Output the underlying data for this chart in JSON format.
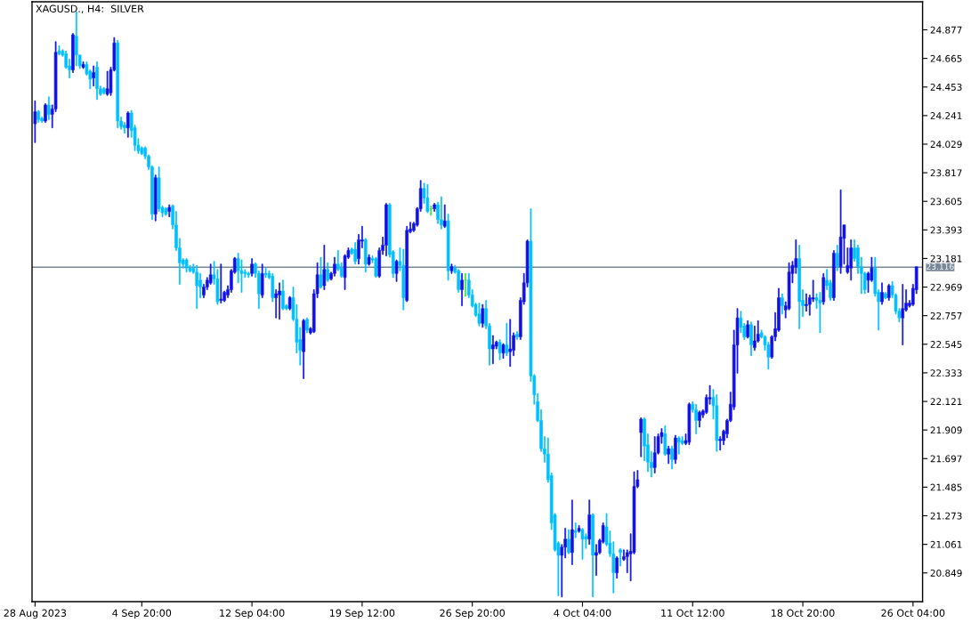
{
  "chart_data": {
    "type": "candlestick",
    "title": "XAGUSD., H4:  SILVER",
    "categories": [
      "28 Aug 2023",
      null,
      null,
      null,
      null,
      null,
      null,
      null,
      null,
      null,
      null,
      null,
      null,
      null,
      null,
      null,
      null,
      null,
      null,
      null,
      null,
      null,
      null,
      null,
      null,
      null,
      null,
      null,
      null,
      null,
      null,
      "4 Sep 20:00",
      null,
      null,
      null,
      null,
      null,
      null,
      null,
      null,
      null,
      null,
      null,
      null,
      null,
      null,
      null,
      null,
      null,
      null,
      null,
      null,
      null,
      null,
      null,
      null,
      null,
      null,
      null,
      null,
      null,
      null,
      null,
      "12 Sep 04:00",
      null,
      null,
      null,
      null,
      null,
      null,
      null,
      null,
      null,
      null,
      null,
      null,
      null,
      null,
      null,
      null,
      null,
      null,
      null,
      null,
      null,
      null,
      null,
      null,
      null,
      null,
      null,
      null,
      null,
      null,
      null,
      "19 Sep 12:00",
      null,
      null,
      null,
      null,
      null,
      null,
      null,
      null,
      null,
      null,
      null,
      null,
      null,
      null,
      null,
      null,
      null,
      null,
      null,
      null,
      null,
      null,
      null,
      null,
      null,
      null,
      null,
      null,
      null,
      null,
      null,
      "26 Sep 20:00",
      null,
      null,
      null,
      null,
      null,
      null,
      null,
      null,
      null,
      null,
      null,
      null,
      null,
      null,
      null,
      null,
      null,
      null,
      null,
      null,
      null,
      null,
      null,
      null,
      null,
      null,
      null,
      null,
      null,
      null,
      null,
      "4 Oct 04:00",
      null,
      null,
      null,
      null,
      null,
      null,
      null,
      null,
      null,
      null,
      null,
      null,
      null,
      null,
      null,
      null,
      null,
      null,
      null,
      null,
      null,
      null,
      null,
      null,
      null,
      null,
      null,
      null,
      null,
      null,
      null,
      "11 Oct 12:00",
      null,
      null,
      null,
      null,
      null,
      null,
      null,
      null,
      null,
      null,
      null,
      null,
      null,
      null,
      null,
      null,
      null,
      null,
      null,
      null,
      null,
      null,
      null,
      null,
      null,
      null,
      null,
      null,
      null,
      null,
      null,
      "18 Oct 20:00",
      null,
      null,
      null,
      null,
      null,
      null,
      null,
      null,
      null,
      null,
      null,
      null,
      null,
      null,
      null,
      null,
      null,
      null,
      null,
      null,
      null,
      null,
      null,
      null,
      null,
      null,
      null,
      null,
      null,
      null,
      null,
      "26 Oct 04:00",
      null
    ],
    "ohlc": [
      [
        24.18,
        24.35,
        24.04,
        24.27
      ],
      [
        24.27,
        24.28,
        24.19,
        24.21
      ],
      [
        24.22,
        24.23,
        24.19,
        24.2
      ],
      [
        24.2,
        24.33,
        24.19,
        24.32
      ],
      [
        24.32,
        24.38,
        24.21,
        24.25
      ],
      [
        24.25,
        24.32,
        24.15,
        24.29
      ],
      [
        24.29,
        24.79,
        24.27,
        24.71
      ],
      [
        24.72,
        24.76,
        24.69,
        24.7
      ],
      [
        24.72,
        24.73,
        24.68,
        24.69
      ],
      [
        24.7,
        24.72,
        24.59,
        24.6
      ],
      [
        24.61,
        24.66,
        24.52,
        24.58
      ],
      [
        24.58,
        24.85,
        24.56,
        24.84
      ],
      [
        24.83,
        25.01,
        24.61,
        24.69
      ],
      [
        24.69,
        24.69,
        24.59,
        24.61
      ],
      [
        24.6,
        24.64,
        24.59,
        24.62
      ],
      [
        24.62,
        24.64,
        24.54,
        24.55
      ],
      [
        24.57,
        24.58,
        24.44,
        24.51
      ],
      [
        24.52,
        24.61,
        24.46,
        24.56
      ],
      [
        24.6,
        24.64,
        24.36,
        24.44
      ],
      [
        24.44,
        24.46,
        24.39,
        24.4
      ],
      [
        24.44,
        24.45,
        24.4,
        24.41
      ],
      [
        24.4,
        24.57,
        24.39,
        24.44
      ],
      [
        24.41,
        24.6,
        24.39,
        24.58
      ],
      [
        24.58,
        24.82,
        24.57,
        24.78
      ],
      [
        24.78,
        24.8,
        24.15,
        24.2
      ],
      [
        24.2,
        24.23,
        24.14,
        24.16
      ],
      [
        24.17,
        24.19,
        24.11,
        24.15
      ],
      [
        24.15,
        24.27,
        24.08,
        24.26
      ],
      [
        24.26,
        24.28,
        24.08,
        24.13
      ],
      [
        24.15,
        24.17,
        23.98,
        24.02
      ],
      [
        24.02,
        24.07,
        23.96,
        23.98
      ],
      [
        24.0,
        24.01,
        23.95,
        23.96
      ],
      [
        24.0,
        24.01,
        23.92,
        23.94
      ],
      [
        23.94,
        23.95,
        23.84,
        23.86
      ],
      [
        23.86,
        23.87,
        23.47,
        23.51
      ],
      [
        23.51,
        23.8,
        23.46,
        23.78
      ],
      [
        23.78,
        23.86,
        23.53,
        23.55
      ],
      [
        23.56,
        23.57,
        23.49,
        23.52
      ],
      [
        23.55,
        23.56,
        23.5,
        23.51
      ],
      [
        23.53,
        23.58,
        23.49,
        23.56
      ],
      [
        23.57,
        23.58,
        23.4,
        23.43
      ],
      [
        23.43,
        23.53,
        23.24,
        23.26
      ],
      [
        23.26,
        23.33,
        22.99,
        23.15
      ],
      [
        23.17,
        23.18,
        23.11,
        23.14
      ],
      [
        23.17,
        23.18,
        23.08,
        23.11
      ],
      [
        23.11,
        23.13,
        23.08,
        23.09
      ],
      [
        23.11,
        23.14,
        23.07,
        23.08
      ],
      [
        23.08,
        23.13,
        22.81,
        22.98
      ],
      [
        23.02,
        23.07,
        22.89,
        22.97
      ],
      [
        22.91,
        22.99,
        22.89,
        22.97
      ],
      [
        22.97,
        23.04,
        22.95,
        23.02
      ],
      [
        23.0,
        23.14,
        22.99,
        23.06
      ],
      [
        23.06,
        23.16,
        22.99,
        23.03
      ],
      [
        23.03,
        23.1,
        22.84,
        22.86
      ],
      [
        22.87,
        23.14,
        22.85,
        22.88
      ],
      [
        22.87,
        22.94,
        22.86,
        22.93
      ],
      [
        22.91,
        22.98,
        22.89,
        22.95
      ],
      [
        22.95,
        23.1,
        22.93,
        23.09
      ],
      [
        23.08,
        23.19,
        23.07,
        23.18
      ],
      [
        23.18,
        23.22,
        23.0,
        23.09
      ],
      [
        23.09,
        23.17,
        22.93,
        23.07
      ],
      [
        23.08,
        23.1,
        23.04,
        23.07
      ],
      [
        23.07,
        23.08,
        23.04,
        23.06
      ],
      [
        23.07,
        23.18,
        23.05,
        23.14
      ],
      [
        23.14,
        23.15,
        23.04,
        23.07
      ],
      [
        23.07,
        23.09,
        22.81,
        22.92
      ],
      [
        22.91,
        23.14,
        22.89,
        23.07
      ],
      [
        23.07,
        23.11,
        23.04,
        23.06
      ],
      [
        23.07,
        23.09,
        23.03,
        23.04
      ],
      [
        23.05,
        23.07,
        22.86,
        22.89
      ],
      [
        22.89,
        22.95,
        22.74,
        22.92
      ],
      [
        22.91,
        23.0,
        22.73,
        22.94
      ],
      [
        22.94,
        23.02,
        22.8,
        22.81
      ],
      [
        22.83,
        22.84,
        22.8,
        22.81
      ],
      [
        22.81,
        22.9,
        22.8,
        22.89
      ],
      [
        22.89,
        22.97,
        22.72,
        22.73
      ],
      [
        22.73,
        22.84,
        22.48,
        22.56
      ],
      [
        22.58,
        22.67,
        22.39,
        22.5
      ],
      [
        22.49,
        22.73,
        22.29,
        22.72
      ],
      [
        22.73,
        22.74,
        22.63,
        22.65
      ],
      [
        22.63,
        22.67,
        22.62,
        22.66
      ],
      [
        22.64,
        22.95,
        22.63,
        22.92
      ],
      [
        22.92,
        23.15,
        22.89,
        23.06
      ],
      [
        23.06,
        23.19,
        22.96,
        22.97
      ],
      [
        22.98,
        23.28,
        22.95,
        23.1
      ],
      [
        23.1,
        23.15,
        23.01,
        23.02
      ],
      [
        23.03,
        23.08,
        23.02,
        23.07
      ],
      [
        23.07,
        23.19,
        23.05,
        23.14
      ],
      [
        23.14,
        23.24,
        23.09,
        23.1
      ],
      [
        23.11,
        23.15,
        23.04,
        23.05
      ],
      [
        23.04,
        23.21,
        22.95,
        23.2
      ],
      [
        23.19,
        23.26,
        23.18,
        23.24
      ],
      [
        23.25,
        23.26,
        23.21,
        23.22
      ],
      [
        23.25,
        23.3,
        23.14,
        23.16
      ],
      [
        23.18,
        23.36,
        23.14,
        23.32
      ],
      [
        23.31,
        23.42,
        23.26,
        23.32
      ],
      [
        23.32,
        23.33,
        23.08,
        23.14
      ],
      [
        23.14,
        23.21,
        23.13,
        23.19
      ],
      [
        23.18,
        23.2,
        23.15,
        23.17
      ],
      [
        23.18,
        23.19,
        23.04,
        23.05
      ],
      [
        23.05,
        23.26,
        23.04,
        23.24
      ],
      [
        23.24,
        23.34,
        23.21,
        23.28
      ],
      [
        23.28,
        23.59,
        23.2,
        23.58
      ],
      [
        23.58,
        23.59,
        23.19,
        23.21
      ],
      [
        23.23,
        23.24,
        23.04,
        23.07
      ],
      [
        23.07,
        23.17,
        23.01,
        23.16
      ],
      [
        23.16,
        23.26,
        23.09,
        23.13
      ],
      [
        23.13,
        23.25,
        22.8,
        22.89
      ],
      [
        22.87,
        23.42,
        22.86,
        23.39
      ],
      [
        23.38,
        23.45,
        23.37,
        23.4
      ],
      [
        23.39,
        23.45,
        23.38,
        23.44
      ],
      [
        23.43,
        23.56,
        23.42,
        23.55
      ],
      [
        23.55,
        23.76,
        23.53,
        23.7
      ],
      [
        23.7,
        23.74,
        23.59,
        23.63
      ],
      [
        23.63,
        23.73,
        23.52,
        23.53
      ],
      [
        23.55,
        23.57,
        23.5,
        23.55
      ],
      [
        23.55,
        23.59,
        23.53,
        23.58
      ],
      [
        23.58,
        23.6,
        23.44,
        23.47
      ],
      [
        23.47,
        23.64,
        23.4,
        23.43
      ],
      [
        23.42,
        23.58,
        23.41,
        23.46
      ],
      [
        23.46,
        23.51,
        23.02,
        23.09
      ],
      [
        23.09,
        23.14,
        23.07,
        23.12
      ],
      [
        23.11,
        23.13,
        23.07,
        23.08
      ],
      [
        23.09,
        23.1,
        22.93,
        22.95
      ],
      [
        22.95,
        23.07,
        22.83,
        23.02
      ],
      [
        23.02,
        23.07,
        22.9,
        23.02
      ],
      [
        23.02,
        23.07,
        22.89,
        22.91
      ],
      [
        22.91,
        22.95,
        22.82,
        22.83
      ],
      [
        22.84,
        22.85,
        22.75,
        22.76
      ],
      [
        22.77,
        22.85,
        22.68,
        22.7
      ],
      [
        22.7,
        22.84,
        22.67,
        22.81
      ],
      [
        22.81,
        22.87,
        22.66,
        22.68
      ],
      [
        22.68,
        22.7,
        22.39,
        22.51
      ],
      [
        22.51,
        22.61,
        22.4,
        22.54
      ],
      [
        22.53,
        22.57,
        22.51,
        22.56
      ],
      [
        22.56,
        22.58,
        22.43,
        22.48
      ],
      [
        22.48,
        22.55,
        22.44,
        22.54
      ],
      [
        22.54,
        22.7,
        22.46,
        22.48
      ],
      [
        22.49,
        22.73,
        22.38,
        22.51
      ],
      [
        22.5,
        22.63,
        22.46,
        22.61
      ],
      [
        22.62,
        22.64,
        22.58,
        22.6
      ],
      [
        22.6,
        22.89,
        22.58,
        22.87
      ],
      [
        22.86,
        23.07,
        22.84,
        23.0
      ],
      [
        23.0,
        23.32,
        22.97,
        23.31
      ],
      [
        23.31,
        23.55,
        22.27,
        22.31
      ],
      [
        22.31,
        22.32,
        22.1,
        22.17
      ],
      [
        22.12,
        22.18,
        21.97,
        21.98
      ],
      [
        21.98,
        22.06,
        21.75,
        21.77
      ],
      [
        21.77,
        21.86,
        21.67,
        21.73
      ],
      [
        21.73,
        21.85,
        21.52,
        21.54
      ],
      [
        21.57,
        21.59,
        21.17,
        21.22
      ],
      [
        21.28,
        21.29,
        21.01,
        21.02
      ],
      [
        21.07,
        21.08,
        20.68,
        20.98
      ],
      [
        20.98,
        21.06,
        20.67,
        21.04
      ],
      [
        21.04,
        21.18,
        20.96,
        21.1
      ],
      [
        21.1,
        21.17,
        20.99,
        21.0
      ],
      [
        21.0,
        21.39,
        20.91,
        21.17
      ],
      [
        21.16,
        21.22,
        21.11,
        21.15
      ],
      [
        21.16,
        21.2,
        21.15,
        21.18
      ],
      [
        21.17,
        21.18,
        20.95,
        21.1
      ],
      [
        21.12,
        21.14,
        21.03,
        21.1
      ],
      [
        21.1,
        21.39,
        21.06,
        21.28
      ],
      [
        21.28,
        21.29,
        20.67,
        20.98
      ],
      [
        20.98,
        21.06,
        20.83,
        21.0
      ],
      [
        21.0,
        21.1,
        20.99,
        21.09
      ],
      [
        21.08,
        21.22,
        21.07,
        21.2
      ],
      [
        21.19,
        21.29,
        21.05,
        21.06
      ],
      [
        21.07,
        21.16,
        20.97,
        20.99
      ],
      [
        20.99,
        21.08,
        20.7,
        20.85
      ],
      [
        20.85,
        20.97,
        20.81,
        20.96
      ],
      [
        21.02,
        21.03,
        20.9,
        21.0
      ],
      [
        20.95,
        21.02,
        20.94,
        20.97
      ],
      [
        20.97,
        21.02,
        20.85,
        21.0
      ],
      [
        20.99,
        21.14,
        20.79,
        21.01
      ],
      [
        21.0,
        21.6,
        20.99,
        21.49
      ],
      [
        21.49,
        21.61,
        21.48,
        21.54
      ],
      [
        21.89,
        22.0,
        21.71,
        21.99
      ],
      [
        21.99,
        22.0,
        21.68,
        21.79
      ],
      [
        21.8,
        21.88,
        21.6,
        21.67
      ],
      [
        21.67,
        21.75,
        21.56,
        21.63
      ],
      [
        21.63,
        21.86,
        21.59,
        21.74
      ],
      [
        21.74,
        21.88,
        21.73,
        21.86
      ],
      [
        21.86,
        21.92,
        21.81,
        21.89
      ],
      [
        21.88,
        21.94,
        21.72,
        21.73
      ],
      [
        21.73,
        21.79,
        21.66,
        21.77
      ],
      [
        21.77,
        21.79,
        21.62,
        21.69
      ],
      [
        21.69,
        21.87,
        21.66,
        21.85
      ],
      [
        21.85,
        21.86,
        21.73,
        21.82
      ],
      [
        21.83,
        21.86,
        21.8,
        21.81
      ],
      [
        21.81,
        21.88,
        21.8,
        21.83
      ],
      [
        21.82,
        22.11,
        21.8,
        22.1
      ],
      [
        22.1,
        22.12,
        22.04,
        22.06
      ],
      [
        22.06,
        22.1,
        21.88,
        21.98
      ],
      [
        21.98,
        22.05,
        21.93,
        22.04
      ],
      [
        22.02,
        22.06,
        22.0,
        22.05
      ],
      [
        22.04,
        22.17,
        22.03,
        22.15
      ],
      [
        22.14,
        22.24,
        22.1,
        22.15
      ],
      [
        22.15,
        22.21,
        21.99,
        22.09
      ],
      [
        22.09,
        22.17,
        21.75,
        21.83
      ],
      [
        21.83,
        21.86,
        21.76,
        21.84
      ],
      [
        21.83,
        21.91,
        21.8,
        21.9
      ],
      [
        21.88,
        21.99,
        21.85,
        21.98
      ],
      [
        21.98,
        22.19,
        21.97,
        22.1
      ],
      [
        22.08,
        22.65,
        22.06,
        22.54
      ],
      [
        22.54,
        22.81,
        22.33,
        22.74
      ],
      [
        22.74,
        22.79,
        22.63,
        22.67
      ],
      [
        22.68,
        22.7,
        22.58,
        22.6
      ],
      [
        22.6,
        22.72,
        22.59,
        22.69
      ],
      [
        22.69,
        22.71,
        22.46,
        22.54
      ],
      [
        22.52,
        22.68,
        22.5,
        22.57
      ],
      [
        22.57,
        22.72,
        22.56,
        22.62
      ],
      [
        22.63,
        22.65,
        22.59,
        22.6
      ],
      [
        22.6,
        22.61,
        22.5,
        22.54
      ],
      [
        22.54,
        22.56,
        22.36,
        22.45
      ],
      [
        22.45,
        22.61,
        22.44,
        22.6
      ],
      [
        22.6,
        22.78,
        22.57,
        22.66
      ],
      [
        22.65,
        22.96,
        22.64,
        22.89
      ],
      [
        22.89,
        22.92,
        22.77,
        22.83
      ],
      [
        22.8,
        22.86,
        22.74,
        22.83
      ],
      [
        22.81,
        23.15,
        22.8,
        23.08
      ],
      [
        23.07,
        23.16,
        23.0,
        23.13
      ],
      [
        23.12,
        23.32,
        23.07,
        23.18
      ],
      [
        23.18,
        23.28,
        22.66,
        22.86
      ],
      [
        22.87,
        22.95,
        22.75,
        22.83
      ],
      [
        22.83,
        22.92,
        22.79,
        22.84
      ],
      [
        22.84,
        22.91,
        22.76,
        22.89
      ],
      [
        22.88,
        23.02,
        22.86,
        22.89
      ],
      [
        22.89,
        22.92,
        22.81,
        22.87
      ],
      [
        22.87,
        22.93,
        22.63,
        22.85
      ],
      [
        22.86,
        23.07,
        22.84,
        23.04
      ],
      [
        23.02,
        23.1,
        22.95,
        22.98
      ],
      [
        23.0,
        23.02,
        22.87,
        22.89
      ],
      [
        22.89,
        23.24,
        22.87,
        23.22
      ],
      [
        23.22,
        23.28,
        23.09,
        23.12
      ],
      [
        23.12,
        23.69,
        23.07,
        23.34
      ],
      [
        23.33,
        23.43,
        23.14,
        23.43
      ],
      [
        23.08,
        23.26,
        23.07,
        23.13
      ],
      [
        23.11,
        23.32,
        23.02,
        23.26
      ],
      [
        23.26,
        23.32,
        23.16,
        23.18
      ],
      [
        23.26,
        23.28,
        23.07,
        23.12
      ],
      [
        23.12,
        23.19,
        22.92,
        23.07
      ],
      [
        23.07,
        23.08,
        22.92,
        22.95
      ],
      [
        23.02,
        23.08,
        22.93,
        23.07
      ],
      [
        23.02,
        23.19,
        23.01,
        23.11
      ],
      [
        23.11,
        23.19,
        22.9,
        22.92
      ],
      [
        22.93,
        22.95,
        22.65,
        22.86
      ],
      [
        22.86,
        23.0,
        22.84,
        22.93
      ],
      [
        22.92,
        22.93,
        22.88,
        22.89
      ],
      [
        22.89,
        22.99,
        22.87,
        22.98
      ],
      [
        22.98,
        23.01,
        22.89,
        22.91
      ],
      [
        22.91,
        22.92,
        22.77,
        22.79
      ],
      [
        22.79,
        22.81,
        22.71,
        22.74
      ],
      [
        22.74,
        22.99,
        22.54,
        22.81
      ],
      [
        22.8,
        22.95,
        22.79,
        22.85
      ],
      [
        22.83,
        22.87,
        22.82,
        22.85
      ],
      [
        22.84,
        22.99,
        22.83,
        22.96
      ],
      [
        22.95,
        23.12,
        22.92,
        23.12
      ]
    ],
    "colors": [
      "#1010e6",
      "#00bfff",
      "#00bfff",
      "#1010e6",
      "#00bfff",
      "#1010e6",
      "#1010e6",
      "#00bfff",
      "#00bfff",
      "#00bfff",
      "#00bfff",
      "#1010e6",
      "#00bfff",
      "#00bfff",
      "#1010e6",
      "#00bfff",
      "#00bfff",
      "#1010e6",
      "#00bfff",
      "#00bfff",
      "#00bfff",
      "#1010e6",
      "#1010e6",
      "#1010e6",
      "#00bfff",
      "#00bfff",
      "#00bfff",
      "#1010e6",
      "#00bfff",
      "#00bfff",
      "#00bfff",
      "#00bfff",
      "#00bfff",
      "#00bfff",
      "#00bfff",
      "#1010e6",
      "#00bfff",
      "#00bfff",
      "#00bfff",
      "#1010e6",
      "#00bfff",
      "#00bfff",
      "#00bfff",
      "#00bfff",
      "#00bfff",
      "#00bfff",
      "#00bfff",
      "#00bfff",
      "#00bfff",
      "#1010e6",
      "#1010e6",
      "#1010e6",
      "#00bfff",
      "#00bfff",
      "#1010e6",
      "#1010e6",
      "#1010e6",
      "#1010e6",
      "#1010e6",
      "#00bfff",
      "#00bfff",
      "#00bfff",
      "#00bfff",
      "#1010e6",
      "#00bfff",
      "#00bfff",
      "#1010e6",
      "#00bfff",
      "#00bfff",
      "#00bfff",
      "#1010e6",
      "#1010e6",
      "#00bfff",
      "#00bfff",
      "#1010e6",
      "#00bfff",
      "#00bfff",
      "#00bfff",
      "#1010e6",
      "#00bfff",
      "#1010e6",
      "#1010e6",
      "#1010e6",
      "#00bfff",
      "#1010e6",
      "#00bfff",
      "#1010e6",
      "#1010e6",
      "#00bfff",
      "#00bfff",
      "#1010e6",
      "#1010e6",
      "#00bfff",
      "#00bfff",
      "#1010e6",
      "#1010e6",
      "#00bfff",
      "#1010e6",
      "#00bfff",
      "#00bfff",
      "#1010e6",
      "#1010e6",
      "#1010e6",
      "#00bfff",
      "#00bfff",
      "#1010e6",
      "#00bfff",
      "#00bfff",
      "#1010e6",
      "#1010e6",
      "#1010e6",
      "#1010e6",
      "#1010e6",
      "#00bfff",
      "#00bfff",
      "#32e632",
      "#1010e6",
      "#00bfff",
      "#00bfff",
      "#1010e6",
      "#00bfff",
      "#1010e6",
      "#00bfff",
      "#00bfff",
      "#1010e6",
      "#32e632",
      "#00bfff",
      "#00bfff",
      "#00bfff",
      "#00bfff",
      "#1010e6",
      "#00bfff",
      "#00bfff",
      "#1010e6",
      "#1010e6",
      "#00bfff",
      "#1010e6",
      "#00bfff",
      "#1010e6",
      "#1010e6",
      "#00bfff",
      "#1010e6",
      "#1010e6",
      "#1010e6",
      "#00bfff",
      "#00bfff",
      "#00bfff",
      "#00bfff",
      "#00bfff",
      "#00bfff",
      "#00bfff",
      "#00bfff",
      "#00bfff",
      "#1010e6",
      "#1010e6",
      "#00bfff",
      "#1010e6",
      "#00bfff",
      "#1010e6",
      "#00bfff",
      "#00bfff",
      "#1010e6",
      "#00bfff",
      "#1010e6",
      "#1010e6",
      "#1010e6",
      "#00bfff",
      "#00bfff",
      "#00bfff",
      "#1010e6",
      "#00bfff",
      "#1010e6",
      "#1010e6",
      "#1010e6",
      "#1010e6",
      "#1010e6",
      "#1010e6",
      "#00bfff",
      "#00bfff",
      "#00bfff",
      "#1010e6",
      "#1010e6",
      "#1010e6",
      "#00bfff",
      "#1010e6",
      "#00bfff",
      "#1010e6",
      "#00bfff",
      "#00bfff",
      "#1010e6",
      "#1010e6",
      "#00bfff",
      "#00bfff",
      "#1010e6",
      "#1010e6",
      "#1010e6",
      "#1010e6",
      "#00bfff",
      "#00bfff",
      "#1010e6",
      "#1010e6",
      "#1010e6",
      "#1010e6",
      "#1010e6",
      "#1010e6",
      "#00bfff",
      "#00bfff",
      "#1010e6",
      "#00bfff",
      "#1010e6",
      "#1010e6",
      "#00bfff",
      "#00bfff",
      "#00bfff",
      "#1010e6",
      "#1010e6",
      "#1010e6",
      "#00bfff",
      "#1010e6",
      "#1010e6",
      "#1010e6",
      "#1010e6",
      "#00bfff",
      "#00bfff",
      "#1010e6",
      "#1010e6",
      "#1010e6",
      "#00bfff",
      "#00bfff",
      "#1010e6",
      "#00bfff",
      "#00bfff",
      "#1010e6",
      "#00bfff",
      "#1010e6",
      "#1010e6",
      "#1010e6",
      "#1010e6",
      "#00bfff",
      "#00bfff",
      "#00bfff",
      "#00bfff",
      "#1010e6",
      "#1010e6",
      "#00bfff",
      "#00bfff",
      "#1010e6",
      "#00bfff",
      "#1010e6",
      "#00bfff",
      "#00bfff",
      "#00bfff",
      "#1010e6",
      "#1010e6",
      "#1010e6",
      "#1010e6",
      "#1010e6"
    ],
    "ylim": [
      20.636,
      25.085
    ],
    "yticks": [
      24.877,
      24.665,
      24.453,
      24.241,
      24.029,
      23.817,
      23.605,
      23.393,
      23.181,
      22.969,
      22.757,
      22.545,
      22.333,
      22.121,
      21.909,
      21.697,
      21.485,
      21.273,
      21.061,
      20.849
    ],
    "ref_lines": [
      {
        "axis": "y",
        "value": 23.116,
        "label": "23.116",
        "color": "#778899"
      }
    ]
  }
}
